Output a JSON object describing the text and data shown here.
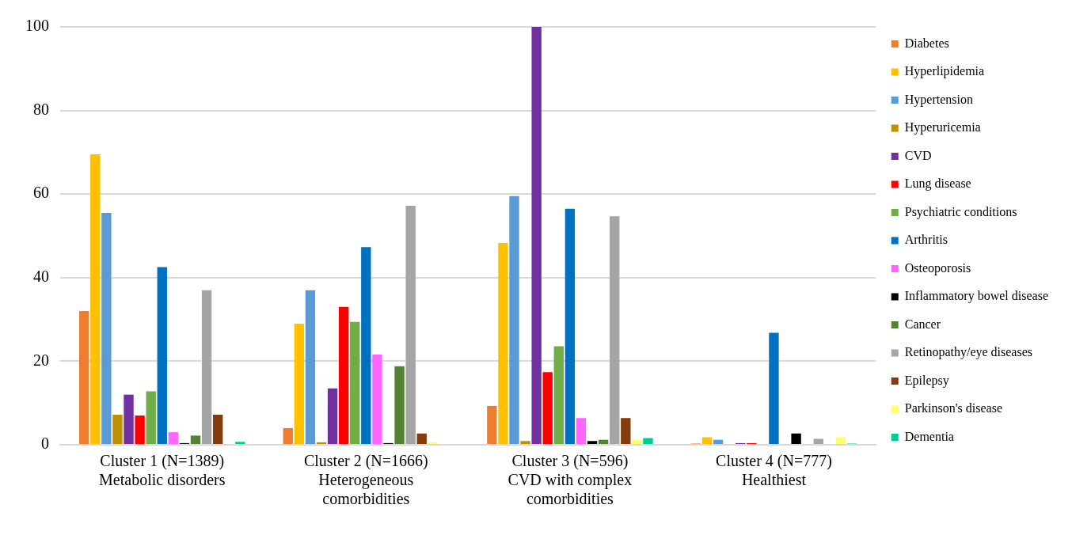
{
  "chart_data": {
    "type": "bar",
    "categories": [
      "Cluster 1 (N=1389)\nMetabolic disorders",
      "Cluster 2 (N=1666)\nHeterogeneous\ncomorbidities",
      "Cluster 3 (N=596)\nCVD with complex\ncomorbidities",
      "Cluster 4 (N=777)\nHealthiest"
    ],
    "series": [
      {
        "name": "Diabetes",
        "color": "#ed7d31",
        "values": [
          32,
          4,
          9.3,
          0.3
        ]
      },
      {
        "name": "Hyperlipidemia",
        "color": "#ffc000",
        "values": [
          69.5,
          29,
          48.3,
          1.8
        ]
      },
      {
        "name": "Hypertension",
        "color": "#5b9bd5",
        "values": [
          55.5,
          37,
          59.5,
          1.2
        ]
      },
      {
        "name": "Hyperuricemia",
        "color": "#bf9000",
        "values": [
          7.2,
          0.6,
          0.9,
          0
        ]
      },
      {
        "name": "CVD",
        "color": "#7030a0",
        "values": [
          12,
          13.5,
          100,
          0.4
        ]
      },
      {
        "name": "Lung disease",
        "color": "#ff0000",
        "values": [
          7,
          33,
          17.4,
          0.4
        ]
      },
      {
        "name": "Psychiatric conditions",
        "color": "#70ad47",
        "values": [
          12.8,
          29.4,
          23.6,
          0
        ]
      },
      {
        "name": "Arthritis",
        "color": "#0070c0",
        "values": [
          42.5,
          47.3,
          56.5,
          26.8
        ]
      },
      {
        "name": "Osteoporosis",
        "color": "#ff66ff",
        "values": [
          3,
          21.6,
          6.4,
          0
        ]
      },
      {
        "name": "Inflammatory bowel disease",
        "color": "#000000",
        "values": [
          0.4,
          0.4,
          0.9,
          2.7
        ]
      },
      {
        "name": "Cancer",
        "color": "#548235",
        "values": [
          2.2,
          18.8,
          1.2,
          0
        ]
      },
      {
        "name": "Retinopathy/eye diseases",
        "color": "#a5a5a5",
        "values": [
          37,
          57.2,
          54.7,
          1.4
        ]
      },
      {
        "name": "Epilepsy",
        "color": "#843c0c",
        "values": [
          7.2,
          2.7,
          6.4,
          0
        ]
      },
      {
        "name": "Parkinson's disease",
        "color": "#ffff66",
        "values": [
          0,
          0.6,
          1.1,
          1.8
        ]
      },
      {
        "name": "Dementia",
        "color": "#00cc99",
        "values": [
          0.7,
          0,
          1.6,
          0.3
        ]
      }
    ],
    "ylim": [
      0,
      100
    ],
    "yticks": [
      0,
      20,
      40,
      60,
      80,
      100
    ],
    "grid": "y",
    "legend": "right"
  }
}
